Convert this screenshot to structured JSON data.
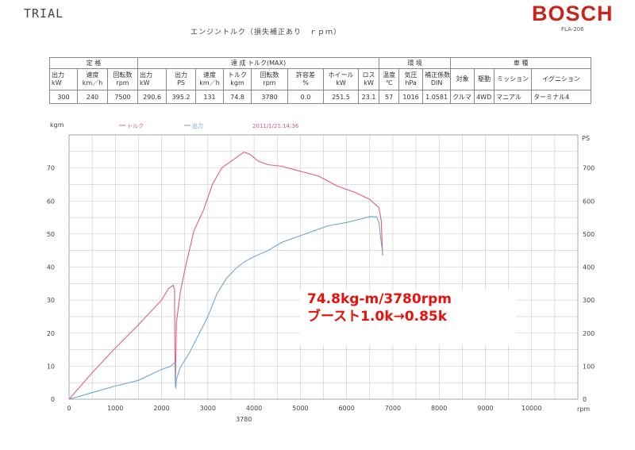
{
  "header": {
    "trial": "TRIAL",
    "logo": "BOSCH",
    "model": "FLA-206",
    "subtitle": "エンジントルク（損失補正あり　ｒｐｍ）"
  },
  "table": {
    "groups": [
      "定 格",
      "達 成 トルク(MAX)",
      "環 境",
      "車 種"
    ],
    "units": [
      [
        "出力",
        "kW"
      ],
      [
        "速度",
        "km／h"
      ],
      [
        "回転数",
        "rpm"
      ],
      [
        "出力",
        "kW"
      ],
      [
        "出力",
        "PS"
      ],
      [
        "速度",
        "km／h"
      ],
      [
        "トルク",
        "kgm"
      ],
      [
        "回転数",
        "rpm"
      ],
      [
        "許容差",
        "%"
      ],
      [
        "ホイール",
        "kW"
      ],
      [
        "ロス",
        "kW"
      ],
      [
        "温度",
        "℃"
      ],
      [
        "気圧",
        "hPa"
      ],
      [
        "補正係数",
        "DIN"
      ],
      [
        "対象",
        ""
      ],
      [
        "駆動",
        ""
      ],
      [
        "ミッション",
        ""
      ],
      [
        "イグニション",
        ""
      ]
    ],
    "values": [
      "300",
      "240",
      "7500",
      "290.6",
      "395.2",
      "131",
      "74.8",
      "3780",
      "0.0",
      "251.5",
      "23.1",
      "57",
      "1016",
      "1.0581",
      "クルマ",
      "4WD",
      "マニアル",
      "ターミナル4"
    ]
  },
  "chart_data": {
    "type": "line",
    "legend": [
      "トルク",
      "出力"
    ],
    "timestamp": "2011/1/21.14:36",
    "xunit": "rpm",
    "ylabel_left": "kgm",
    "ylabel_right": "PS",
    "xlim": [
      0,
      11000
    ],
    "ylim_left": [
      0,
      80
    ],
    "ylim_right": [
      0,
      800
    ],
    "xticks": [
      0,
      1000,
      2000,
      3000,
      4000,
      5000,
      6000,
      7000,
      8000,
      9000,
      10000
    ],
    "yticks_left": [
      0,
      10,
      20,
      30,
      40,
      50,
      60,
      70
    ],
    "yticks_right": [
      0,
      100,
      200,
      300,
      400,
      500,
      600,
      700
    ],
    "marker_label": "3780",
    "grid": true,
    "series": [
      {
        "name": "トルク",
        "axis": "left",
        "color": "#e0607e",
        "points": [
          [
            0,
            0
          ],
          [
            500,
            8
          ],
          [
            1000,
            15.5
          ],
          [
            1500,
            22.5
          ],
          [
            2000,
            30
          ],
          [
            2150,
            33.5
          ],
          [
            2250,
            34.5
          ],
          [
            2280,
            33.2
          ],
          [
            2290,
            11.5
          ],
          [
            2300,
            4
          ],
          [
            2320,
            23
          ],
          [
            2400,
            32
          ],
          [
            2500,
            39
          ],
          [
            2700,
            51
          ],
          [
            2900,
            57
          ],
          [
            3100,
            65
          ],
          [
            3300,
            70
          ],
          [
            3500,
            72
          ],
          [
            3650,
            73.5
          ],
          [
            3780,
            74.8
          ],
          [
            3900,
            74.2
          ],
          [
            4100,
            72
          ],
          [
            4300,
            71
          ],
          [
            4600,
            70.5
          ],
          [
            5000,
            69
          ],
          [
            5400,
            67.5
          ],
          [
            5800,
            64.5
          ],
          [
            6200,
            62.5
          ],
          [
            6500,
            60.5
          ],
          [
            6700,
            58
          ],
          [
            6750,
            54
          ],
          [
            6770,
            47
          ],
          [
            6780,
            43.5
          ]
        ]
      },
      {
        "name": "出力",
        "axis": "right",
        "color": "#6fa7d8",
        "points": [
          [
            0,
            0
          ],
          [
            500,
            20
          ],
          [
            1000,
            40
          ],
          [
            1500,
            57
          ],
          [
            2000,
            90
          ],
          [
            2200,
            100
          ],
          [
            2290,
            112
          ],
          [
            2300,
            40
          ],
          [
            2310,
            33
          ],
          [
            2320,
            60
          ],
          [
            2400,
            95
          ],
          [
            2600,
            140
          ],
          [
            2800,
            195
          ],
          [
            3000,
            250
          ],
          [
            3200,
            320
          ],
          [
            3400,
            365
          ],
          [
            3600,
            395
          ],
          [
            3780,
            415
          ],
          [
            4000,
            432
          ],
          [
            4300,
            450
          ],
          [
            4600,
            475
          ],
          [
            5000,
            495
          ],
          [
            5300,
            510
          ],
          [
            5600,
            525
          ],
          [
            6000,
            535
          ],
          [
            6300,
            545
          ],
          [
            6500,
            553
          ],
          [
            6650,
            552
          ],
          [
            6700,
            535
          ],
          [
            6750,
            475
          ],
          [
            6780,
            440
          ]
        ]
      }
    ]
  },
  "annotation": {
    "line1": "74.8kg-m/3780rpm",
    "line2": "ブースト1.0k→0.85k"
  }
}
